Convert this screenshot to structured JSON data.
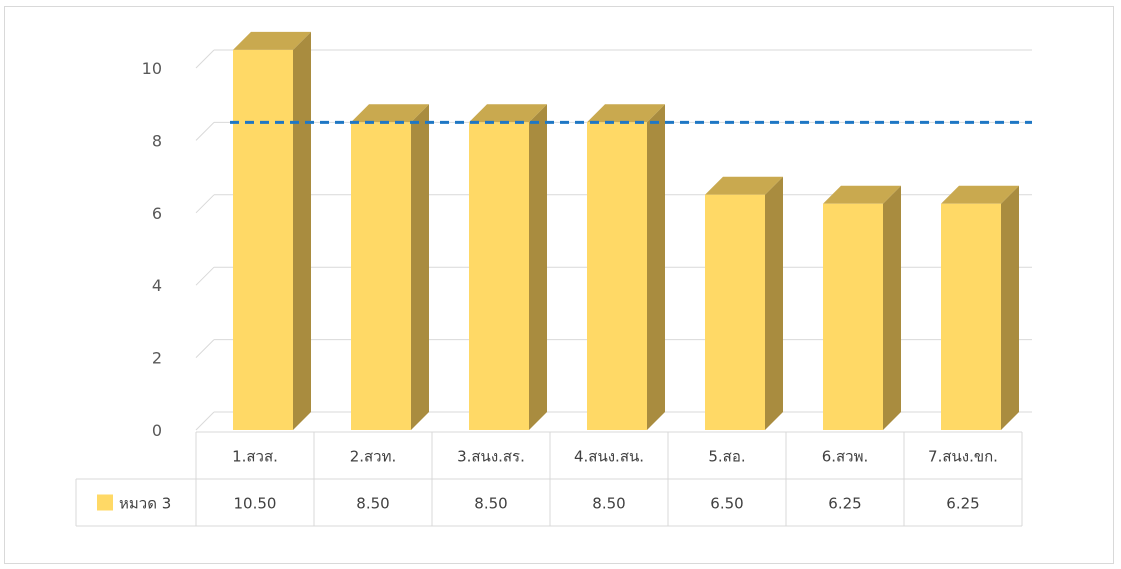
{
  "chart_data": {
    "type": "bar",
    "categories": [
      "1.สวส.",
      "2.สวท.",
      "3.สนง.สร.",
      "4.สนง.สน.",
      "5.สอ.",
      "6.สวพ.",
      "7.สนง.ขก."
    ],
    "series": [
      {
        "name": "หมวด 3",
        "values": [
          10.5,
          8.5,
          8.5,
          8.5,
          6.5,
          6.25,
          6.25
        ],
        "labels": [
          "10.50",
          "8.50",
          "8.50",
          "8.50",
          "6.50",
          "6.25",
          "6.25"
        ],
        "color": "#ffd966"
      }
    ],
    "reference_line": {
      "value": 8,
      "color": "#1f77c4",
      "style": "dashed"
    },
    "ylim": [
      0,
      10
    ],
    "yticks": [
      "0",
      "2",
      "4",
      "6",
      "8",
      "10"
    ],
    "grid": true,
    "legend": "data-table",
    "style": "3d-column",
    "title": "",
    "xlabel": "",
    "ylabel": ""
  }
}
